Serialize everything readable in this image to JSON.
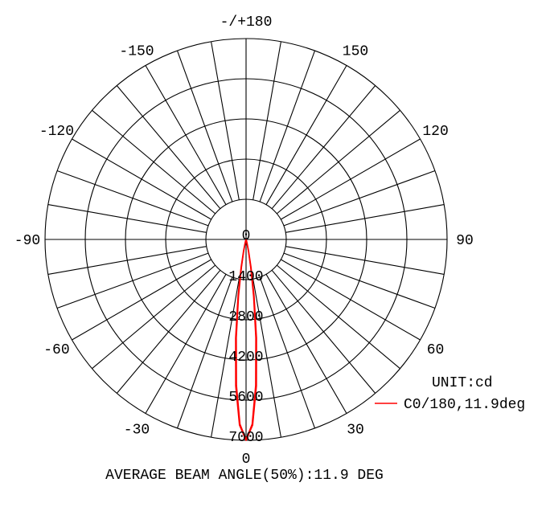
{
  "chart_data": {
    "type": "polar",
    "angle_labels": [
      "0",
      "30",
      "60",
      "90",
      "120",
      "150",
      "-/+180",
      "-150",
      "-120",
      "-90",
      "-60",
      "-30"
    ],
    "angle_values": [
      0,
      30,
      60,
      90,
      120,
      150,
      180,
      -150,
      -120,
      -90,
      -60,
      -30
    ],
    "radial_labels": [
      "0",
      "1400",
      "2800",
      "4200",
      "5600",
      "7000"
    ],
    "radial_range": [
      0,
      7000
    ],
    "spoke_step_deg": 10,
    "unit_label": "UNIT:cd",
    "series": [
      {
        "name": "C0/180,11.9deg",
        "color": "#ff0000",
        "angles": [
          -20,
          -16,
          -14,
          -12,
          -10,
          -8,
          -6,
          -4,
          -2,
          0,
          2,
          4,
          6,
          8,
          10,
          12,
          14,
          16,
          20
        ],
        "values": [
          0,
          47,
          151,
          417,
          987,
          2000,
          3458,
          5118,
          6473,
          7000,
          6473,
          5118,
          3458,
          2000,
          987,
          417,
          151,
          47,
          0
        ]
      }
    ],
    "footer": "AVERAGE BEAM ANGLE(50%):11.9 DEG"
  }
}
